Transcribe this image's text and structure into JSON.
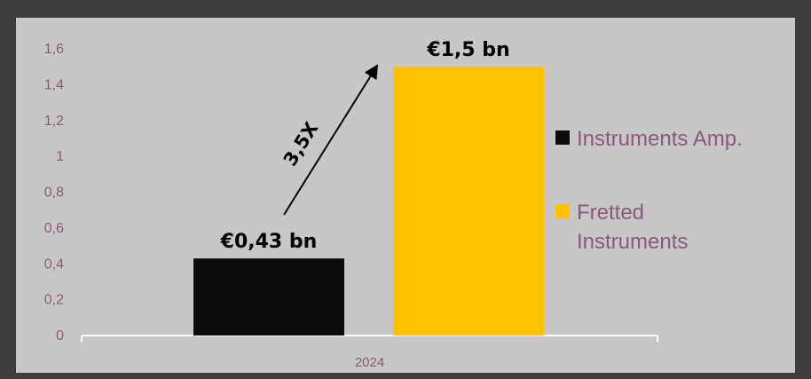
{
  "chart_data": {
    "type": "bar",
    "categories": [
      "2024"
    ],
    "series": [
      {
        "name": "Instruments Amp.",
        "values": [
          0.43
        ],
        "color": "#0d0b0c",
        "data_label": "€0,43 bn"
      },
      {
        "name": "Fretted Instruments",
        "values": [
          1.5
        ],
        "color": "#ffc000",
        "data_label": "€1,5 bn"
      }
    ],
    "legend_lines": [
      [
        "Instruments Amp."
      ],
      [
        "Fretted",
        "Instruments"
      ]
    ],
    "yticks": [
      "0",
      "0,2",
      "0,4",
      "0,6",
      "0,8",
      "1",
      "1,2",
      "1,4",
      "1,6"
    ],
    "ytick_values": [
      0,
      0.2,
      0.4,
      0.6,
      0.8,
      1.0,
      1.2,
      1.4,
      1.6
    ],
    "ylim": [
      0,
      1.6
    ],
    "grid": false,
    "legend_position": "right",
    "annotation": {
      "text": "3,5X",
      "type": "arrow"
    },
    "background": "#c7c7c7",
    "frame_color": "#3c3c3c",
    "text_color": "#8a5a78"
  }
}
